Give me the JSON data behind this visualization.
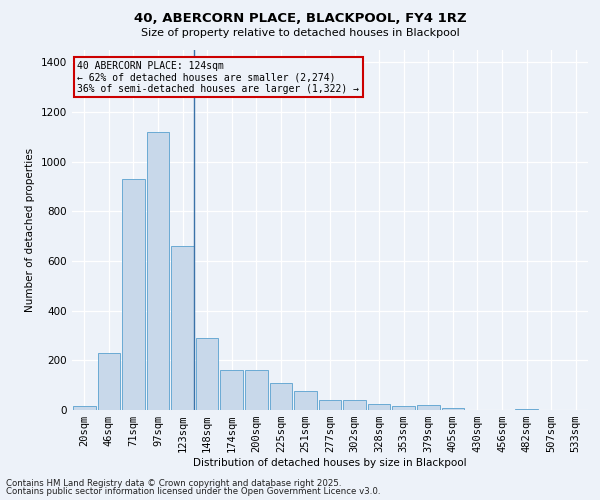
{
  "title_line1": "40, ABERCORN PLACE, BLACKPOOL, FY4 1RZ",
  "title_line2": "Size of property relative to detached houses in Blackpool",
  "xlabel": "Distribution of detached houses by size in Blackpool",
  "ylabel": "Number of detached properties",
  "categories": [
    "20sqm",
    "46sqm",
    "71sqm",
    "97sqm",
    "123sqm",
    "148sqm",
    "174sqm",
    "200sqm",
    "225sqm",
    "251sqm",
    "277sqm",
    "302sqm",
    "328sqm",
    "353sqm",
    "379sqm",
    "405sqm",
    "430sqm",
    "456sqm",
    "482sqm",
    "507sqm",
    "533sqm"
  ],
  "values": [
    15,
    230,
    930,
    1120,
    660,
    290,
    160,
    160,
    110,
    75,
    40,
    40,
    25,
    15,
    20,
    10,
    0,
    0,
    5,
    0,
    0
  ],
  "bar_color": "#c8d8ea",
  "bar_edge_color": "#6aaad4",
  "background_color": "#edf2f9",
  "grid_color": "#ffffff",
  "annotation_text": "40 ABERCORN PLACE: 124sqm\n← 62% of detached houses are smaller (2,274)\n36% of semi-detached houses are larger (1,322) →",
  "annotation_box_color": "#cc0000",
  "vline_x_index": 4.45,
  "ylim": [
    0,
    1450
  ],
  "yticks": [
    0,
    200,
    400,
    600,
    800,
    1000,
    1200,
    1400
  ],
  "footnote_line1": "Contains HM Land Registry data © Crown copyright and database right 2025.",
  "footnote_line2": "Contains public sector information licensed under the Open Government Licence v3.0."
}
